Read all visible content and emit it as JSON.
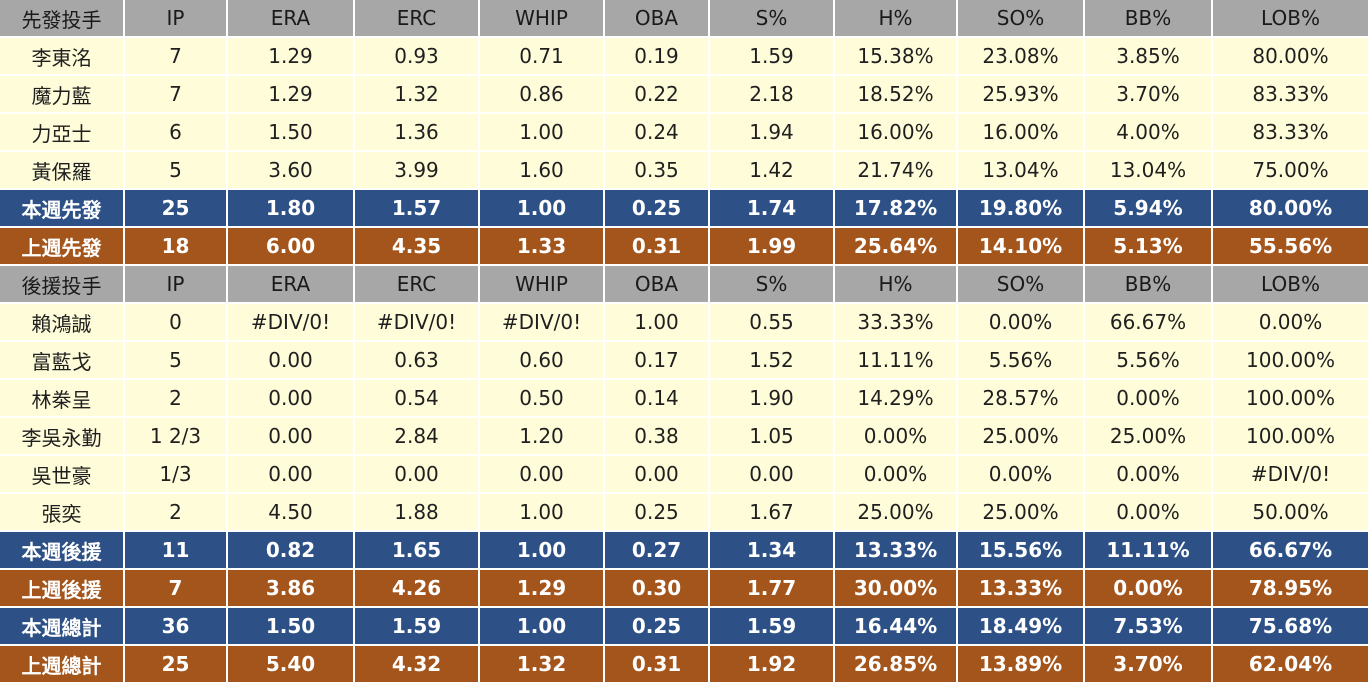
{
  "colors": {
    "header_bg": "#A7A7A7",
    "data_row_bg": "#FFFCD9",
    "this_week_bg": "#2D5186",
    "last_week_bg": "#A4551C",
    "grid_line": "#FFFFFF",
    "text_dark": "#1F1F1F",
    "text_light": "#FFFFFF"
  },
  "stat_columns": [
    "IP",
    "ERA",
    "ERC",
    "WHIP",
    "OBA",
    "S%",
    "H%",
    "SO%",
    "BB%",
    "LOB%"
  ],
  "sections": [
    {
      "header_label": "先發投手",
      "rows": [
        {
          "label": "李東洺",
          "style": "normal",
          "values": [
            "7",
            "1.29",
            "0.93",
            "0.71",
            "0.19",
            "1.59",
            "15.38%",
            "23.08%",
            "3.85%",
            "80.00%"
          ]
        },
        {
          "label": "魔力藍",
          "style": "normal",
          "values": [
            "7",
            "1.29",
            "1.32",
            "0.86",
            "0.22",
            "2.18",
            "18.52%",
            "25.93%",
            "3.70%",
            "83.33%"
          ]
        },
        {
          "label": "力亞士",
          "style": "normal",
          "values": [
            "6",
            "1.50",
            "1.36",
            "1.00",
            "0.24",
            "1.94",
            "16.00%",
            "16.00%",
            "4.00%",
            "83.33%"
          ]
        },
        {
          "label": "黃保羅",
          "style": "normal",
          "values": [
            "5",
            "3.60",
            "3.99",
            "1.60",
            "0.35",
            "1.42",
            "21.74%",
            "13.04%",
            "13.04%",
            "75.00%"
          ]
        },
        {
          "label": "本週先發",
          "style": "blue",
          "values": [
            "25",
            "1.80",
            "1.57",
            "1.00",
            "0.25",
            "1.74",
            "17.82%",
            "19.80%",
            "5.94%",
            "80.00%"
          ]
        },
        {
          "label": "上週先發",
          "style": "brown",
          "values": [
            "18",
            "6.00",
            "4.35",
            "1.33",
            "0.31",
            "1.99",
            "25.64%",
            "14.10%",
            "5.13%",
            "55.56%"
          ]
        }
      ]
    },
    {
      "header_label": "後援投手",
      "rows": [
        {
          "label": "賴鴻誠",
          "style": "normal",
          "values": [
            "0",
            "#DIV/0!",
            "#DIV/0!",
            "#DIV/0!",
            "1.00",
            "0.55",
            "33.33%",
            "0.00%",
            "66.67%",
            "0.00%"
          ]
        },
        {
          "label": "富藍戈",
          "style": "normal",
          "values": [
            "5",
            "0.00",
            "0.63",
            "0.60",
            "0.17",
            "1.52",
            "11.11%",
            "5.56%",
            "5.56%",
            "100.00%"
          ]
        },
        {
          "label": "林桊呈",
          "style": "normal",
          "values": [
            "2",
            "0.00",
            "0.54",
            "0.50",
            "0.14",
            "1.90",
            "14.29%",
            "28.57%",
            "0.00%",
            "100.00%"
          ]
        },
        {
          "label": "李吳永勤",
          "style": "normal",
          "values": [
            "1 2/3",
            "0.00",
            "2.84",
            "1.20",
            "0.38",
            "1.05",
            "0.00%",
            "25.00%",
            "25.00%",
            "100.00%"
          ]
        },
        {
          "label": "吳世豪",
          "style": "normal",
          "values": [
            "1/3",
            "0.00",
            "0.00",
            "0.00",
            "0.00",
            "0.00",
            "0.00%",
            "0.00%",
            "0.00%",
            "#DIV/0!"
          ]
        },
        {
          "label": "張奕",
          "style": "normal",
          "values": [
            "2",
            "4.50",
            "1.88",
            "1.00",
            "0.25",
            "1.67",
            "25.00%",
            "25.00%",
            "0.00%",
            "50.00%"
          ]
        },
        {
          "label": "本週後援",
          "style": "blue",
          "values": [
            "11",
            "0.82",
            "1.65",
            "1.00",
            "0.27",
            "1.34",
            "13.33%",
            "15.56%",
            "11.11%",
            "66.67%"
          ]
        },
        {
          "label": "上週後援",
          "style": "brown",
          "values": [
            "7",
            "3.86",
            "4.26",
            "1.29",
            "0.30",
            "1.77",
            "30.00%",
            "13.33%",
            "0.00%",
            "78.95%"
          ]
        },
        {
          "label": "本週總計",
          "style": "blue",
          "values": [
            "36",
            "1.50",
            "1.59",
            "1.00",
            "0.25",
            "1.59",
            "16.44%",
            "18.49%",
            "7.53%",
            "75.68%"
          ]
        },
        {
          "label": "上週總計",
          "style": "brown",
          "values": [
            "25",
            "5.40",
            "4.32",
            "1.32",
            "0.31",
            "1.92",
            "26.85%",
            "13.89%",
            "3.70%",
            "62.04%"
          ]
        }
      ]
    }
  ]
}
